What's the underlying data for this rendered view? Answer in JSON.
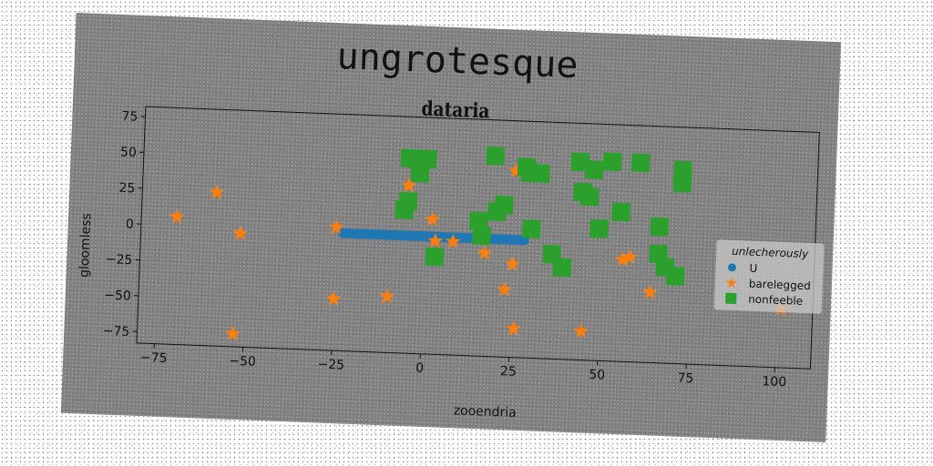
{
  "figure_title": "ungrotesque",
  "chart_data": {
    "type": "scatter",
    "title": "dataria",
    "xlabel": "zooendria",
    "ylabel": "gloomless",
    "xlim": [
      -80,
      110
    ],
    "ylim": [
      -83,
      82
    ],
    "xticks": [
      -75,
      -50,
      -25,
      0,
      25,
      50,
      75,
      100
    ],
    "yticks": [
      -75,
      -50,
      -25,
      0,
      25,
      50,
      75
    ],
    "grid": false,
    "legend": {
      "title": "unlecherously",
      "placement": "center-right"
    },
    "series": [
      {
        "name": "U",
        "marker": "circle",
        "color": "#1f77b4",
        "x": [
          -23,
          -22,
          -21,
          -20,
          -19,
          -18,
          -17,
          -16,
          -15,
          -14,
          -13,
          -12,
          -11,
          -10,
          -9,
          -8,
          -7,
          -6,
          -5,
          -4,
          -3,
          -2,
          -1,
          0,
          1,
          2,
          3,
          4,
          5,
          6,
          7,
          8,
          9,
          10,
          11,
          12,
          13,
          14,
          15,
          16,
          17,
          18,
          19,
          20,
          21,
          22,
          23,
          24,
          25,
          26,
          27,
          28
        ],
        "y": [
          -1,
          -1,
          -1,
          -1,
          -1,
          -1,
          -1,
          -1,
          -1,
          -1,
          -1,
          -1,
          -1,
          -1,
          -1,
          -1,
          -1,
          -1,
          -1,
          -1,
          -1,
          -1,
          -1,
          -1,
          -1,
          -1,
          -1,
          -1,
          -1,
          -1,
          -1,
          -1,
          -1,
          -1,
          -1,
          -1,
          -1,
          -1,
          -1,
          -1,
          -1,
          -1,
          -1,
          -1,
          -1,
          -1,
          -1,
          -1,
          -1,
          -1,
          -1,
          -1
        ]
      },
      {
        "name": "barelegged",
        "marker": "star",
        "color": "#ff7f0e",
        "x": [
          -70,
          -59,
          -52,
          -53,
          -25,
          -25,
          -10,
          -5,
          2,
          3,
          8,
          17,
          23,
          25,
          25,
          26,
          45,
          56,
          58,
          64,
          101
        ],
        "y": [
          6,
          24,
          -4,
          -74,
          3,
          -47,
          -44,
          34,
          11,
          -4,
          -4,
          -11,
          -36,
          47,
          -18,
          -63,
          -63,
          -12,
          -10,
          -34,
          -42
        ]
      },
      {
        "name": "nonfeeble",
        "marker": "square",
        "color": "#2ca02c",
        "x": [
          -5,
          0,
          -2,
          -5,
          -6,
          3,
          15,
          16,
          20,
          22,
          19,
          28,
          29,
          32,
          30,
          36,
          39,
          43,
          44,
          46,
          47,
          49,
          52,
          55,
          60,
          66,
          66,
          68,
          71,
          72,
          72
        ],
        "y": [
          53,
          53,
          43,
          23,
          17,
          -15,
          11,
          1,
          18,
          23,
          57,
          50,
          46,
          46,
          7,
          -10,
          -19,
          55,
          34,
          31,
          50,
          9,
          56,
          21,
          56,
          12,
          -7,
          -16,
          -22,
          52,
          43
        ]
      }
    ]
  }
}
